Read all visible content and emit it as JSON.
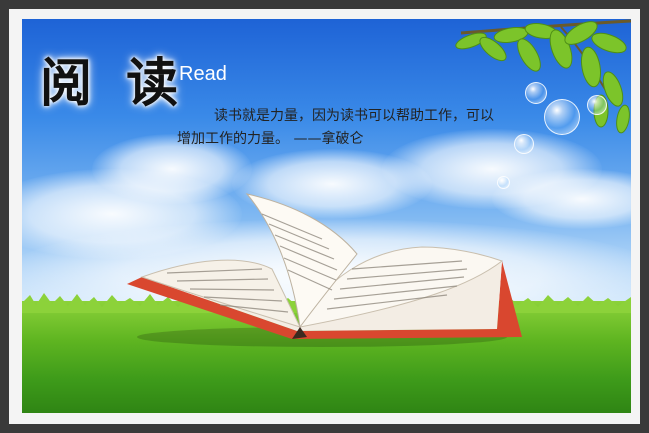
{
  "poster": {
    "title_cn": "阅 读",
    "title_en": "Read",
    "quote": "读书就是力量，因为读书可以帮助工作，可以增加工作的力量。 ——拿破仑"
  },
  "colors": {
    "sky_top": "#1e63d6",
    "grass": "#5fb521",
    "book_cover": "#d9472f",
    "frame": "#3a3a3a"
  }
}
